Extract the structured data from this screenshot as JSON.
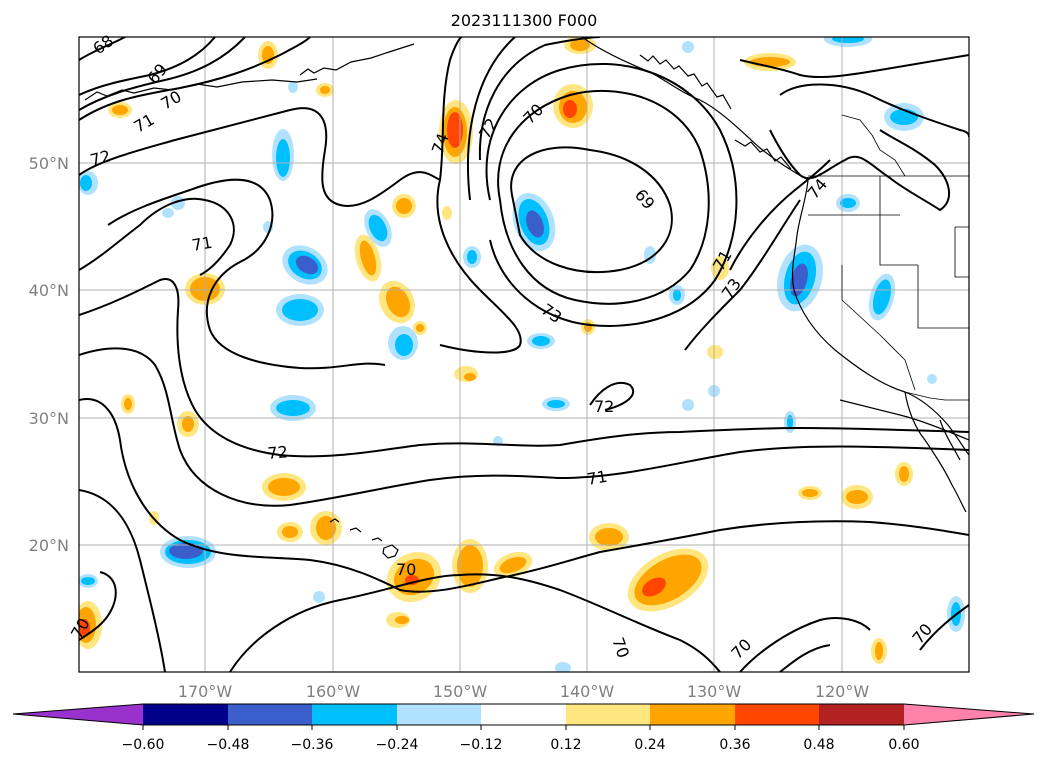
{
  "title": "2023111300 F000",
  "lon_labels": [
    "170°W",
    "160°W",
    "150°W",
    "140°W",
    "130°W",
    "120°W"
  ],
  "lat_labels": [
    "50°N",
    "40°N",
    "30°N",
    "20°N"
  ],
  "colorbar": {
    "ticks": [
      "−0.60",
      "−0.48",
      "−0.36",
      "−0.24",
      "−0.12",
      "0.12",
      "0.24",
      "0.36",
      "0.48",
      "0.60"
    ],
    "colors": [
      "#9932cc",
      "#00008b",
      "#3a5fcd",
      "#00bfff",
      "#b0e2ff",
      "#ffffff",
      "#ffe680",
      "#ffa500",
      "#ff4500",
      "#b22222",
      "#ff82ab"
    ]
  },
  "contour_labels": [
    "68",
    "69",
    "70",
    "71",
    "72",
    "71",
    "74",
    "72",
    "70",
    "69",
    "73",
    "71",
    "73",
    "74",
    "72",
    "72",
    "71",
    "70",
    "70",
    "70",
    "70",
    "70"
  ],
  "map": {
    "extent_lon": [
      -180,
      -110
    ],
    "extent_lat": [
      10,
      60
    ],
    "gridlines": true,
    "contour_color": "#000000",
    "coastline_color": "#000000"
  }
}
